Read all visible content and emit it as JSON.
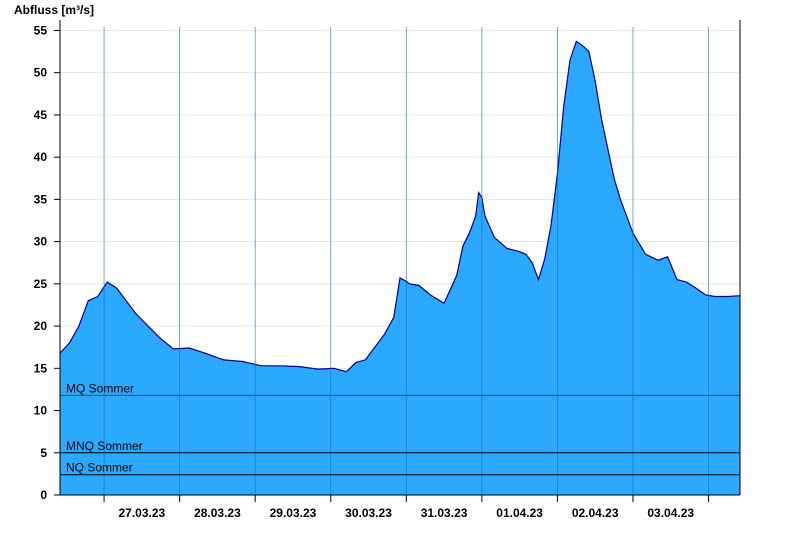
{
  "chart_data": {
    "type": "area",
    "ylabel": "Abfluss [m³/s]",
    "xlabel": "",
    "ylim": [
      0,
      56
    ],
    "yticks": [
      0,
      5,
      10,
      15,
      20,
      25,
      30,
      35,
      40,
      45,
      50,
      55
    ],
    "xlim": [
      "2023-03-26T10:00",
      "2023-04-04T10:00"
    ],
    "day_labels": [
      "27.03.23",
      "28.03.23",
      "29.03.23",
      "30.03.23",
      "31.03.23",
      "01.04.23",
      "02.04.23",
      "03.04.23"
    ],
    "grid": true,
    "colors": {
      "fill": "#2ba8ff",
      "line": "#00008b",
      "mq": "#008000",
      "mnq": "#000000",
      "nq": "#000000"
    },
    "reference_lines": [
      {
        "label": "MQ Sommer",
        "value": 11.8,
        "color": "#008000"
      },
      {
        "label": "MNQ Sommer",
        "value": 5.0,
        "color": "#000000"
      },
      {
        "label": "NQ Sommer",
        "value": 2.4,
        "color": "#000000"
      }
    ],
    "series": [
      {
        "x": [
          "2023-03-26T10:00",
          "2023-03-26T13:00",
          "2023-03-26T16:00",
          "2023-03-26T19:00",
          "2023-03-26T22:00",
          "2023-03-27T01:00",
          "2023-03-27T04:00",
          "2023-03-27T07:00",
          "2023-03-27T10:00",
          "2023-03-27T14:00",
          "2023-03-27T18:00",
          "2023-03-27T22:00",
          "2023-03-28T03:00",
          "2023-03-28T08:00",
          "2023-03-28T14:00",
          "2023-03-28T20:00",
          "2023-03-29T02:00",
          "2023-03-29T08:00",
          "2023-03-29T14:00",
          "2023-03-29T20:00",
          "2023-03-30T01:00",
          "2023-03-30T05:00",
          "2023-03-30T08:00",
          "2023-03-30T11:00",
          "2023-03-30T14:00",
          "2023-03-30T17:00",
          "2023-03-30T20:00",
          "2023-03-30T22:00",
          "2023-03-31T00:00",
          "2023-03-31T01:00",
          "2023-03-31T04:00",
          "2023-03-31T08:00",
          "2023-03-31T12:00",
          "2023-03-31T16:00",
          "2023-03-31T18:00",
          "2023-03-31T20:00",
          "2023-03-31T22:00",
          "2023-03-31T23:00",
          "2023-04-01T00:00",
          "2023-04-01T01:00",
          "2023-04-01T04:00",
          "2023-04-01T08:00",
          "2023-04-01T12:00",
          "2023-04-01T14:00",
          "2023-04-01T16:00",
          "2023-04-01T18:00",
          "2023-04-01T20:00",
          "2023-04-01T22:00",
          "2023-04-02T00:00",
          "2023-04-02T02:00",
          "2023-04-02T04:00",
          "2023-04-02T06:00",
          "2023-04-02T08:00",
          "2023-04-02T10:00",
          "2023-04-02T12:00",
          "2023-04-02T14:00",
          "2023-04-02T16:00",
          "2023-04-02T18:00",
          "2023-04-02T20:00",
          "2023-04-02T22:00",
          "2023-04-03T00:00",
          "2023-04-03T04:00",
          "2023-04-03T08:00",
          "2023-04-03T11:00",
          "2023-04-03T14:00",
          "2023-04-03T17:00",
          "2023-04-03T20:00",
          "2023-04-03T23:00",
          "2023-04-04T02:00",
          "2023-04-04T06:00",
          "2023-04-04T10:00"
        ],
        "values": [
          16.8,
          18.0,
          20.0,
          23.0,
          23.5,
          25.2,
          24.5,
          23.0,
          21.5,
          20.0,
          18.5,
          17.3,
          17.4,
          16.8,
          16.0,
          15.8,
          15.3,
          15.3,
          15.2,
          14.9,
          15.0,
          14.6,
          15.7,
          16.0,
          17.5,
          19.0,
          21.0,
          25.7,
          25.3,
          25.0,
          24.8,
          23.6,
          22.7,
          26.0,
          29.5,
          31.0,
          33.0,
          35.8,
          35.2,
          33.0,
          30.5,
          29.2,
          28.8,
          28.5,
          27.5,
          25.5,
          28.0,
          32.0,
          38.0,
          46.0,
          51.5,
          53.7,
          53.2,
          52.5,
          49.0,
          44.5,
          41.0,
          37.5,
          35.0,
          33.0,
          31.0,
          28.5,
          27.8,
          28.2,
          25.5,
          25.2,
          24.5,
          23.7,
          23.5,
          23.5,
          23.6
        ]
      }
    ]
  }
}
